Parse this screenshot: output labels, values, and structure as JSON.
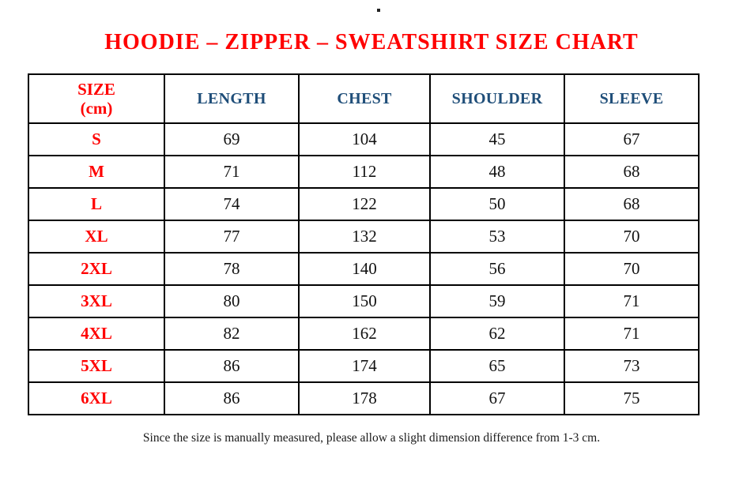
{
  "page": {
    "stray_dot": ".",
    "title": "HOODIE – ZIPPER – SWEATSHIRT SIZE CHART",
    "note": "Since the size is manually measured, please allow a slight dimension difference from 1-3 cm."
  },
  "colors": {
    "accent_red": "#ff0000",
    "header_blue": "#1f4e79",
    "body_text": "#111111",
    "border": "#000000"
  },
  "table": {
    "size_header": {
      "line1": "SIZE",
      "line2": "(cm)"
    },
    "measure_columns": [
      "LENGTH",
      "CHEST",
      "SHOULDER",
      "SLEEVE"
    ],
    "rows": [
      {
        "size": "S",
        "values": [
          "69",
          "104",
          "45",
          "67"
        ]
      },
      {
        "size": "M",
        "values": [
          "71",
          "112",
          "48",
          "68"
        ]
      },
      {
        "size": "L",
        "values": [
          "74",
          "122",
          "50",
          "68"
        ]
      },
      {
        "size": "XL",
        "values": [
          "77",
          "132",
          "53",
          "70"
        ]
      },
      {
        "size": "2XL",
        "values": [
          "78",
          "140",
          "56",
          "70"
        ]
      },
      {
        "size": "3XL",
        "values": [
          "80",
          "150",
          "59",
          "71"
        ]
      },
      {
        "size": "4XL",
        "values": [
          "82",
          "162",
          "62",
          "71"
        ]
      },
      {
        "size": "5XL",
        "values": [
          "86",
          "174",
          "65",
          "73"
        ]
      },
      {
        "size": "6XL",
        "values": [
          "86",
          "178",
          "67",
          "75"
        ]
      }
    ]
  }
}
